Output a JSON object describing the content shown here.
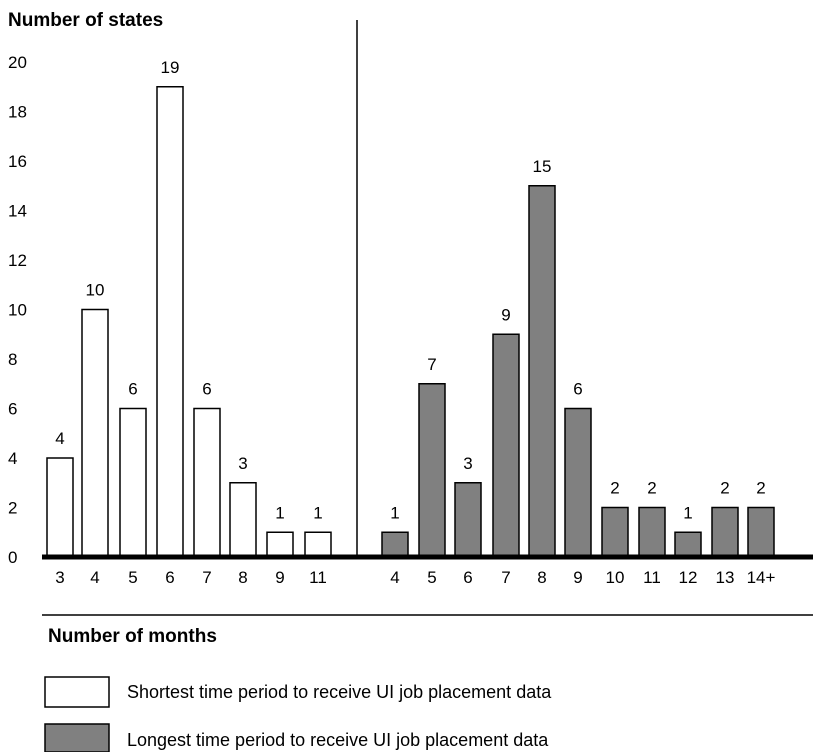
{
  "chart_data": {
    "type": "bar",
    "ylabel": "Number of states",
    "xlabel": "Number of months",
    "ylim": [
      0,
      20
    ],
    "yticks": [
      0,
      2,
      4,
      6,
      8,
      10,
      12,
      14,
      16,
      18,
      20
    ],
    "grid": false,
    "legend_position": "bottom",
    "series": [
      {
        "name": "Shortest time period to receive UI job placement data",
        "fill": "#ffffff",
        "categories": [
          "3",
          "4",
          "5",
          "6",
          "7",
          "8",
          "9",
          "11"
        ],
        "values": [
          4,
          10,
          6,
          19,
          6,
          3,
          1,
          1
        ]
      },
      {
        "name": "Longest time period to receive UI job placement data",
        "fill": "#808080",
        "categories": [
          "4",
          "5",
          "6",
          "7",
          "8",
          "9",
          "10",
          "11",
          "12",
          "13",
          "14+"
        ],
        "values": [
          1,
          7,
          3,
          9,
          15,
          6,
          2,
          2,
          1,
          2,
          2
        ]
      }
    ]
  }
}
